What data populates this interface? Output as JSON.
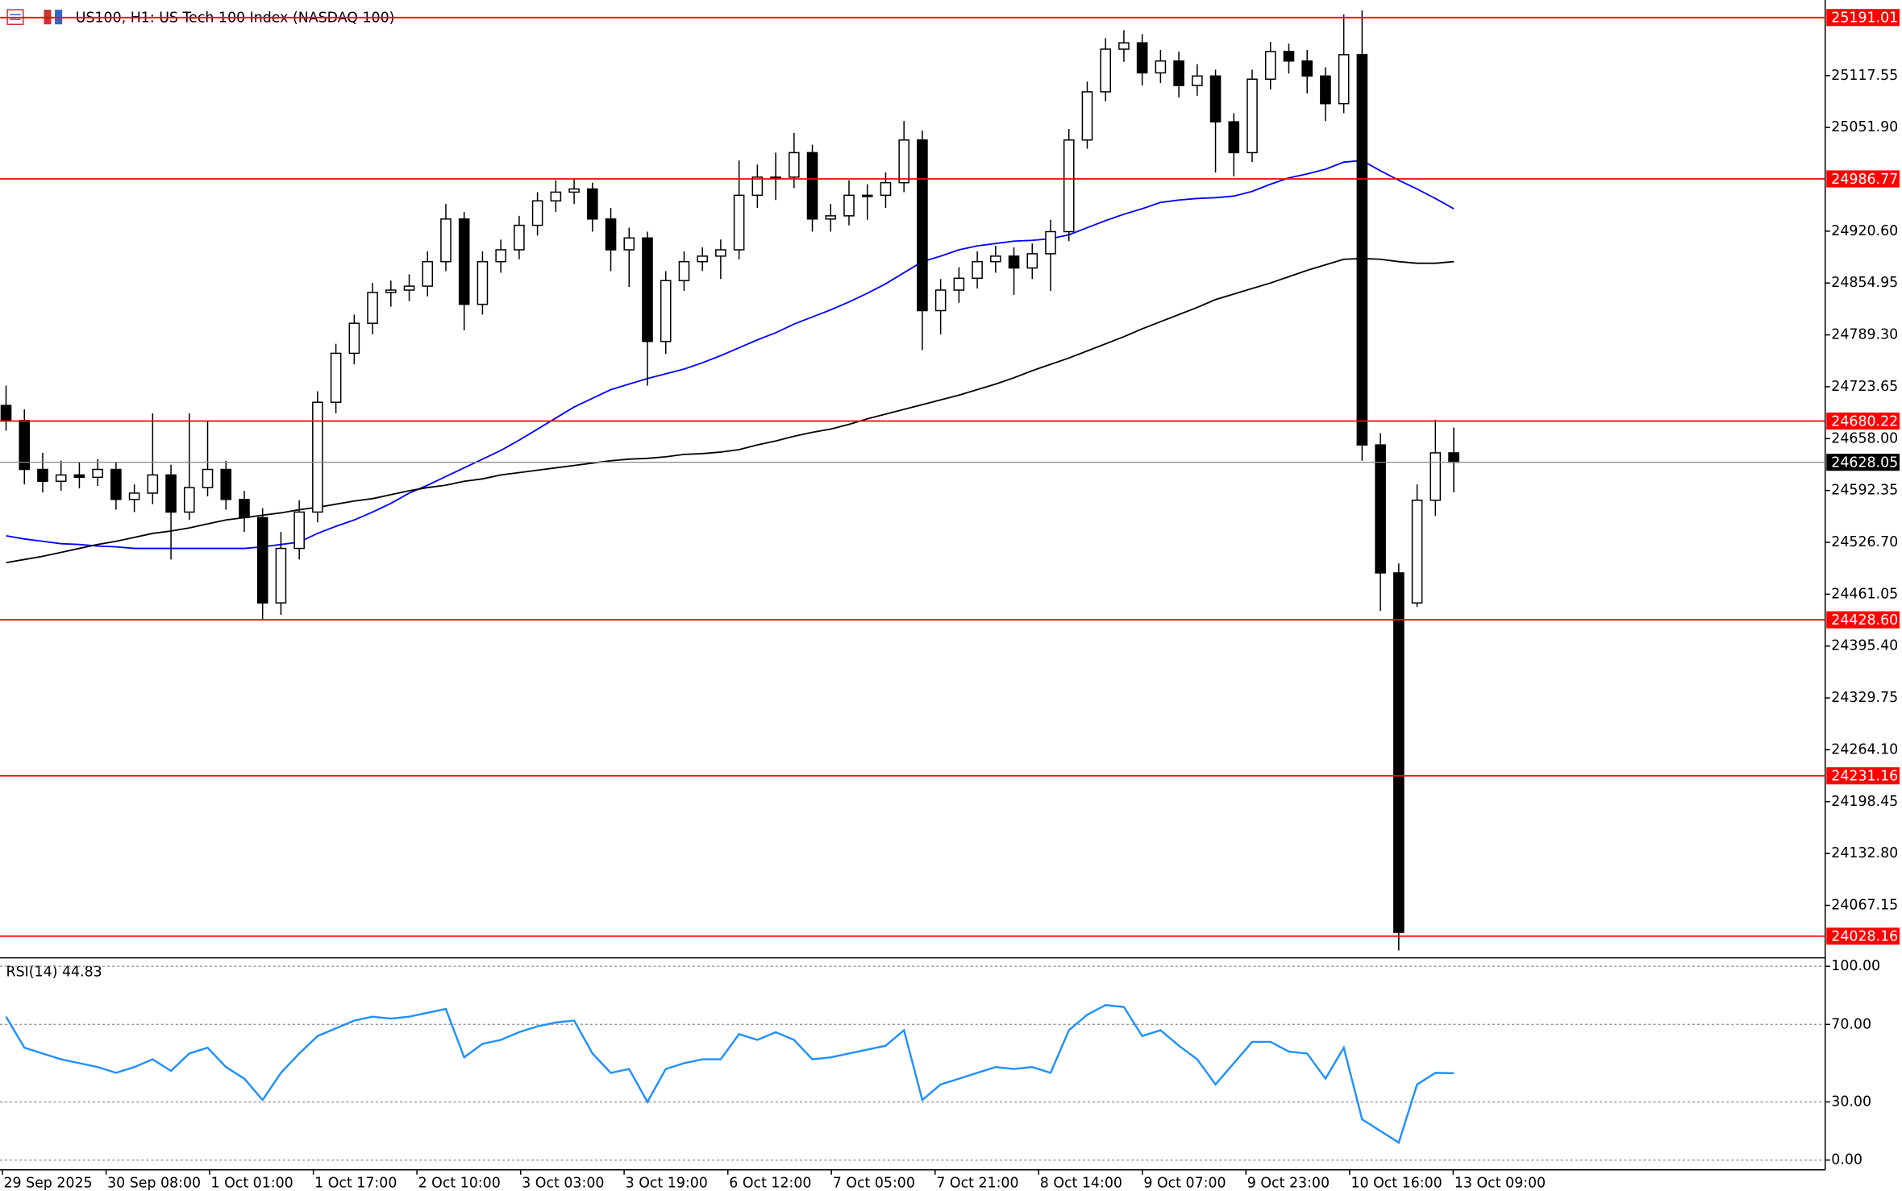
{
  "chart_data": [
    {
      "type": "candlestick",
      "title": "US100, H1:  US Tech 100 Index (NASDAQ 100)",
      "up_color": "#ffffff",
      "down_color": "#000000",
      "level_color": "#ff0000",
      "ohlc": [
        [
          24700,
          24725,
          24668,
          24681
        ],
        [
          24681,
          24695,
          24600,
          24619
        ],
        [
          24619,
          24640,
          24590,
          24604
        ],
        [
          24604,
          24630,
          24592,
          24612
        ],
        [
          24612,
          24628,
          24595,
          24609
        ],
        [
          24609,
          24632,
          24598,
          24619
        ],
        [
          24619,
          24628,
          24568,
          24581
        ],
        [
          24581,
          24600,
          24565,
          24589
        ],
        [
          24589,
          24690,
          24575,
          24612
        ],
        [
          24612,
          24625,
          24505,
          24565
        ],
        [
          24565,
          24690,
          24555,
          24596
        ],
        [
          24596,
          24680,
          24585,
          24619
        ],
        [
          24619,
          24630,
          24568,
          24581
        ],
        [
          24581,
          24592,
          24540,
          24558
        ],
        [
          24558,
          24570,
          24428,
          24450
        ],
        [
          24450,
          24540,
          24435,
          24519
        ],
        [
          24519,
          24580,
          24505,
          24565
        ],
        [
          24565,
          24718,
          24552,
          24704
        ],
        [
          24704,
          24778,
          24690,
          24766
        ],
        [
          24766,
          24815,
          24752,
          24804
        ],
        [
          24804,
          24855,
          24790,
          24843
        ],
        [
          24843,
          24858,
          24825,
          24846
        ],
        [
          24846,
          24866,
          24832,
          24851
        ],
        [
          24851,
          24895,
          24838,
          24882
        ],
        [
          24882,
          24955,
          24870,
          24936
        ],
        [
          24936,
          24945,
          24795,
          24828
        ],
        [
          24828,
          24895,
          24815,
          24882
        ],
        [
          24882,
          24910,
          24868,
          24897
        ],
        [
          24897,
          24940,
          24885,
          24928
        ],
        [
          24928,
          24970,
          24915,
          24959
        ],
        [
          24959,
          24985,
          24945,
          24970
        ],
        [
          24970,
          24986,
          24955,
          24974
        ],
        [
          24974,
          24982,
          24920,
          24936
        ],
        [
          24936,
          24950,
          24870,
          24897
        ],
        [
          24897,
          24925,
          24850,
          24912
        ],
        [
          24912,
          24920,
          24725,
          24781
        ],
        [
          24781,
          24870,
          24765,
          24858
        ],
        [
          24858,
          24895,
          24845,
          24882
        ],
        [
          24882,
          24900,
          24870,
          24889
        ],
        [
          24889,
          24910,
          24860,
          24897
        ],
        [
          24897,
          25010,
          24885,
          24966
        ],
        [
          24966,
          25005,
          24950,
          24989
        ],
        [
          24989,
          25020,
          24960,
          24989
        ],
        [
          24989,
          25045,
          24975,
          25020
        ],
        [
          25020,
          25030,
          24920,
          24936
        ],
        [
          24936,
          24955,
          24920,
          24940
        ],
        [
          24940,
          24985,
          24928,
          24966
        ],
        [
          24966,
          24980,
          24935,
          24966
        ],
        [
          24966,
          24995,
          24950,
          24982
        ],
        [
          24982,
          25060,
          24970,
          25036
        ],
        [
          25036,
          25048,
          24770,
          24820
        ],
        [
          24820,
          24860,
          24790,
          24846
        ],
        [
          24846,
          24875,
          24830,
          24861
        ],
        [
          24861,
          24895,
          24848,
          24882
        ],
        [
          24882,
          24902,
          24868,
          24889
        ],
        [
          24889,
          24900,
          24840,
          24874
        ],
        [
          24874,
          24905,
          24860,
          24892
        ],
        [
          24892,
          24935,
          24845,
          24920
        ],
        [
          24920,
          25050,
          24908,
          25036
        ],
        [
          25036,
          25110,
          25025,
          25097
        ],
        [
          25097,
          25165,
          25085,
          25151
        ],
        [
          25151,
          25175,
          25135,
          25159
        ],
        [
          25159,
          25170,
          25105,
          25121
        ],
        [
          25121,
          25150,
          25108,
          25136
        ],
        [
          25136,
          25148,
          25090,
          25105
        ],
        [
          25105,
          25132,
          25092,
          25117
        ],
        [
          25117,
          25125,
          24995,
          25059
        ],
        [
          25059,
          25070,
          24990,
          25020
        ],
        [
          25020,
          25125,
          25008,
          25113
        ],
        [
          25113,
          25160,
          25100,
          25148
        ],
        [
          25148,
          25158,
          25120,
          25136
        ],
        [
          25136,
          25150,
          25095,
          25117
        ],
        [
          25117,
          25128,
          25060,
          25082
        ],
        [
          25082,
          25195,
          25070,
          25144
        ],
        [
          25144,
          25200,
          24630,
          24650
        ],
        [
          24650,
          24665,
          24440,
          24488
        ],
        [
          24488,
          24500,
          24010,
          24033
        ],
        [
          24450,
          24600,
          24445,
          24580
        ],
        [
          24580,
          24682,
          24560,
          24640
        ],
        [
          24640,
          24672,
          24590,
          24628
        ]
      ],
      "series": [
        {
          "color": "#0000ff",
          "values": [
            24535,
            24531,
            24528,
            24525,
            24524,
            24522,
            24521,
            24519,
            24519,
            24519,
            24519,
            24519,
            24519,
            24519,
            24521,
            24524,
            24527,
            24538,
            24547,
            24555,
            24565,
            24576,
            24589,
            24599,
            24610,
            24621,
            24632,
            24643,
            24656,
            24670,
            24684,
            24698,
            24709,
            24720,
            24727,
            24734,
            24740,
            24746,
            24754,
            24763,
            24773,
            24783,
            24792,
            24803,
            24812,
            24821,
            24831,
            24842,
            24854,
            24868,
            24882,
            24889,
            24897,
            24902,
            24905,
            24908,
            24909,
            24911,
            24916,
            24925,
            24934,
            24942,
            24949,
            24957,
            24960,
            24962,
            24963,
            24965,
            24971,
            24980,
            24988,
            24993,
            24999,
            25008,
            25010,
            24997,
            24985,
            24974,
            24962,
            24949
          ]
        },
        {
          "color": "#000000",
          "values": [
            24501,
            24505,
            24509,
            24514,
            24519,
            24524,
            24528,
            24533,
            24538,
            24541,
            24545,
            24550,
            24555,
            24558,
            24561,
            24564,
            24568,
            24571,
            24575,
            24579,
            24582,
            24587,
            24592,
            24596,
            24599,
            24604,
            24607,
            24612,
            24615,
            24618,
            24621,
            24624,
            24627,
            24630,
            24632,
            24633,
            24635,
            24638,
            24639,
            24641,
            24644,
            24650,
            24655,
            24661,
            24666,
            24670,
            24676,
            24683,
            24689,
            24695,
            24701,
            24707,
            24713,
            24720,
            24727,
            24735,
            24744,
            24752,
            24760,
            24769,
            24778,
            24787,
            24797,
            24806,
            24815,
            24824,
            24834,
            24841,
            24848,
            24855,
            24863,
            24871,
            24878,
            24885,
            24886,
            24885,
            24882,
            24880,
            24880,
            24882
          ]
        }
      ],
      "levels": [
        25191.01,
        24986.77,
        24680.22,
        {
          "value": 24428.6,
          "label": "24428.60"
        },
        24231.16,
        24028.16
      ],
      "current_price": 24628.05,
      "ylim": [
        24002.35,
        25208.6
      ],
      "yticks": [
        25117.55,
        {
          "value": 25051.9,
          "label": "25051.90"
        },
        {
          "value": 24920.6,
          "label": "24920.60"
        },
        24854.95,
        {
          "value": 24789.3,
          "label": "24789.30"
        },
        24723.65,
        {
          "value": 24658,
          "label": "24658.00"
        },
        24592.35,
        {
          "value": 24526.7,
          "label": "24526.70"
        },
        24461.05,
        {
          "value": 24395.4,
          "label": "24395.40"
        },
        24329.75,
        {
          "value": 24264.1,
          "label": "24264.10"
        },
        24198.45,
        {
          "value": 24132.8,
          "label": "24132.80"
        },
        24067.15
      ],
      "xlim": [
        -0.33,
        99.27
      ],
      "xticks": [
        {
          "value": -0.2,
          "label": "29 Sep 2025"
        },
        {
          "value": 5.46,
          "label": "30 Sep 08:00"
        },
        {
          "value": 11.11,
          "label": "1 Oct 01:00"
        },
        {
          "value": 16.77,
          "label": "1 Oct 17:00"
        },
        {
          "value": 22.42,
          "label": "2 Oct 10:00"
        },
        {
          "value": 28.08,
          "label": "3 Oct 03:00"
        },
        {
          "value": 33.73,
          "label": "3 Oct 19:00"
        },
        {
          "value": 39.39,
          "label": "6 Oct 12:00"
        },
        {
          "value": 45.04,
          "label": "7 Oct 05:00"
        },
        {
          "value": 50.7,
          "label": "7 Oct 21:00"
        },
        {
          "value": 56.35,
          "label": "8 Oct 14:00"
        },
        {
          "value": 62.01,
          "label": "9 Oct 07:00"
        },
        {
          "value": 67.66,
          "label": "9 Oct 23:00"
        },
        {
          "value": 73.32,
          "label": "10 Oct 16:00"
        },
        {
          "value": 78.97,
          "label": "13 Oct 09:00"
        }
      ]
    },
    {
      "type": "line",
      "title": "RSI(14) 44.83",
      "color": "#1e90ff",
      "values": [
        74,
        58,
        55,
        52,
        50,
        48,
        45,
        48,
        52,
        46,
        55,
        58,
        48,
        42,
        31,
        45,
        55,
        64,
        68,
        72,
        74,
        73,
        74,
        76,
        78,
        53,
        60,
        62,
        66,
        69,
        71,
        72,
        55,
        45,
        47,
        30,
        47,
        50,
        52,
        52,
        65,
        62,
        66,
        62,
        52,
        53,
        55,
        57,
        59,
        67,
        31,
        39,
        42,
        45,
        48,
        47,
        48,
        45,
        67,
        75,
        80,
        79,
        64,
        67,
        59,
        52,
        39,
        50,
        61,
        61,
        56,
        55,
        42,
        58,
        21,
        15,
        9,
        39,
        45,
        44.83
      ],
      "ylim": [
        0,
        100
      ],
      "yticks": [
        {
          "value": 100,
          "label": "100.00"
        },
        {
          "value": 70,
          "label": "70.00"
        },
        {
          "value": 30,
          "label": "30.00"
        },
        {
          "value": 0,
          "label": "0.00"
        }
      ],
      "grid": true
    }
  ]
}
